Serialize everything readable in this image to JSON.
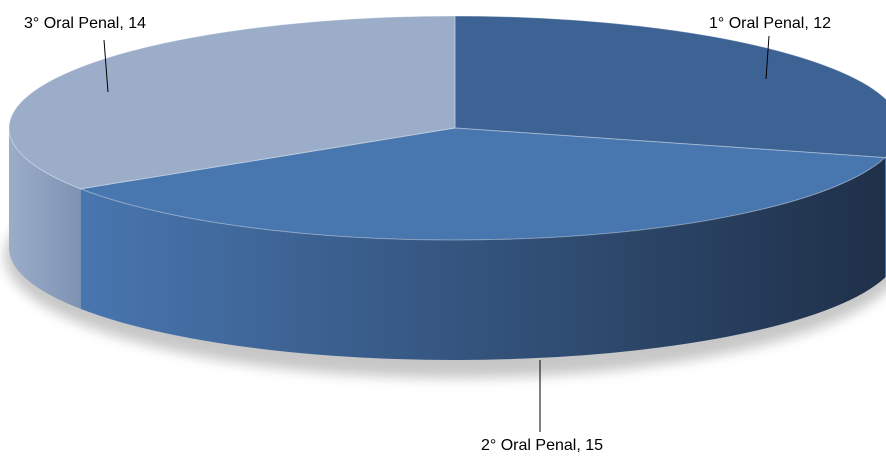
{
  "chart_data": {
    "type": "pie",
    "style": "3d",
    "categories": [
      "1° Oral Penal",
      "2° Oral Penal",
      "3° Oral Penal"
    ],
    "values": [
      12,
      15,
      14
    ],
    "data_labels": [
      "1° Oral Penal, 12",
      "2° Oral Penal, 15",
      "3° Oral Penal, 14"
    ],
    "legend": "none",
    "colors": {
      "slice_1": "#3D6394",
      "slice_2": "#4876AF",
      "slice_3": "#9BADC9",
      "side_dark": "#1F3049",
      "label_line": "#000000"
    }
  }
}
